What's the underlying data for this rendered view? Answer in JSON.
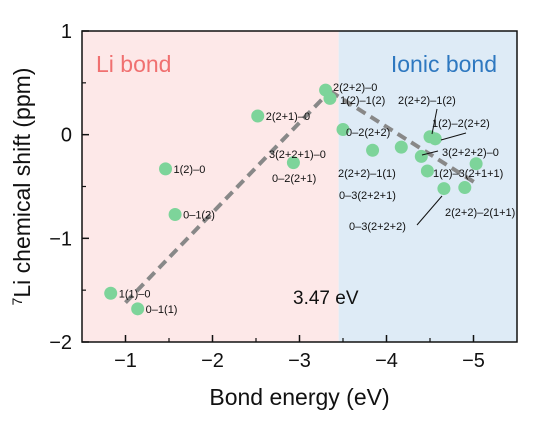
{
  "chart_data": {
    "type": "scatter",
    "xlabel": "Bond energy (eV)",
    "ylabel_sup": "7",
    "ylabel": "Li chemical shift (ppm)",
    "xlim": [
      -0.5,
      -5.5
    ],
    "ylim": [
      -2,
      1
    ],
    "xticks": [
      -1,
      -2,
      -3,
      -4,
      -5
    ],
    "xtick_labels": [
      "−1",
      "−2",
      "−3",
      "−4",
      "−5"
    ],
    "yticks": [
      -2,
      -1,
      0,
      1
    ],
    "ytick_labels": [
      "−2",
      "−1",
      "0",
      "1"
    ],
    "regions": [
      {
        "label": "Li bond",
        "x_from": -0.5,
        "x_to": -3.45,
        "color": "#fde8e8",
        "text_color": "#f07070"
      },
      {
        "label": "Ionic bond",
        "x_from": -3.45,
        "x_to": -5.5,
        "color": "#deebf6",
        "text_color": "#2e78c0"
      }
    ],
    "annotation": "3.47 eV",
    "point_color": "#7dd49a",
    "trend_color": "#888888",
    "trend_lines": [
      {
        "x": [
          -1.0,
          -3.35
        ],
        "y": [
          -1.62,
          0.42
        ]
      },
      {
        "x": [
          -3.35,
          -5.05
        ],
        "y": [
          0.42,
          -0.48
        ]
      }
    ],
    "points": [
      {
        "x": -0.83,
        "y": -1.53,
        "label": "1(1)–0"
      },
      {
        "x": -1.14,
        "y": -1.68,
        "label": "0–1(1)"
      },
      {
        "x": -1.46,
        "y": -0.33,
        "label": "1(2)–0"
      },
      {
        "x": -1.57,
        "y": -0.77,
        "label": "0–1(2)"
      },
      {
        "x": -2.52,
        "y": 0.18,
        "label": "2(2+1)–0"
      },
      {
        "x": -2.93,
        "y": -0.27,
        "label": "0–2(2+1)"
      },
      {
        "x": -3.3,
        "y": 0.43,
        "label": "2(2+2)–0"
      },
      {
        "x": -3.35,
        "y": 0.35,
        "label": "1(2)–1(2)"
      },
      {
        "x": -3.5,
        "y": 0.05,
        "label": "0–2(2+2)"
      },
      {
        "x": -3.84,
        "y": -0.15,
        "label": "3(2+2+1)–0"
      },
      {
        "x": -4.17,
        "y": -0.12,
        "label": "2(2+2)–1(1)"
      },
      {
        "x": -4.4,
        "y": -0.21,
        "label": "0–3(2+2+1)"
      },
      {
        "x": -4.47,
        "y": -0.35,
        "label": "1(2)–3(2+1+1)"
      },
      {
        "x": -4.5,
        "y": -0.02,
        "label": "2(2+2)–1(2)"
      },
      {
        "x": -4.56,
        "y": -0.04,
        "label": "1(2)–2(2+2)"
      },
      {
        "x": -4.66,
        "y": -0.52,
        "label": "0–3(2+2+2)"
      },
      {
        "x": -4.9,
        "y": -0.51,
        "label": "2(2+2)–2(1+1)"
      },
      {
        "x": -5.03,
        "y": -0.28,
        "label": "3(2+2+2)–0"
      }
    ]
  }
}
